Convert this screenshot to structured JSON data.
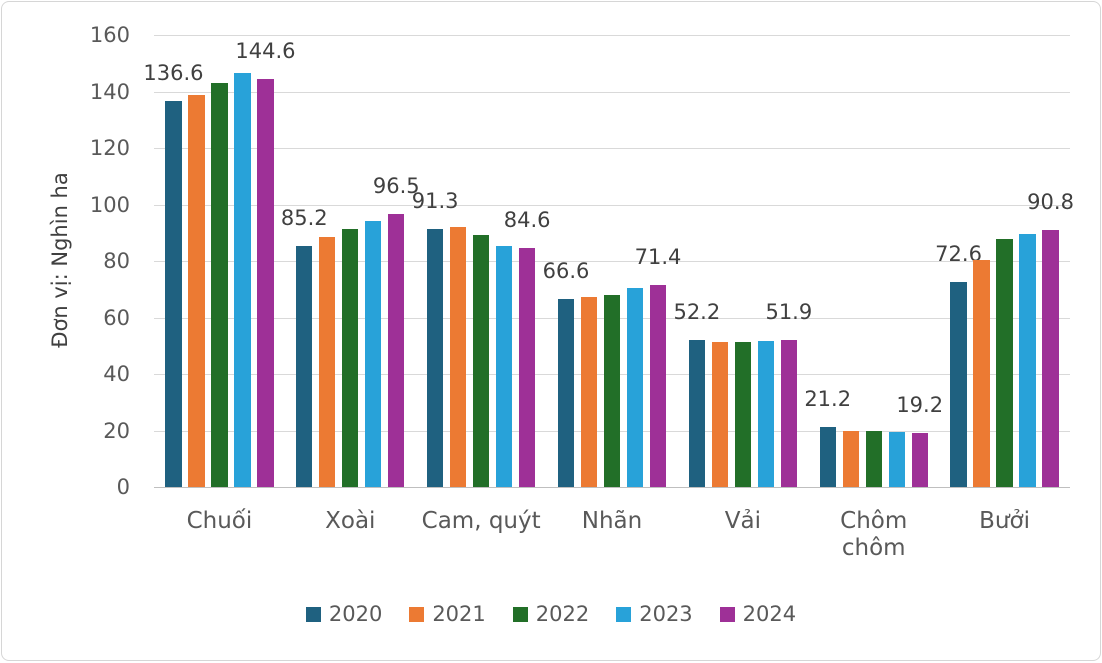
{
  "chart_data": {
    "type": "bar",
    "title": "",
    "xlabel": "",
    "ylabel": "Đơn vị: Nghìn ha",
    "ylim": [
      0,
      160
    ],
    "ytick_step": 20,
    "grid": true,
    "legend_position": "bottom",
    "categories": [
      "Chuối",
      "Xoài",
      "Cam, quýt",
      "Nhãn",
      "Vải",
      "Chôm chôm",
      "Bưởi"
    ],
    "x_tick_lines": [
      [
        "Chuối"
      ],
      [
        "Xoài"
      ],
      [
        "Cam, quýt"
      ],
      [
        "Nhãn"
      ],
      [
        "Vải"
      ],
      [
        "Chôm",
        "chôm"
      ],
      [
        "Bưởi"
      ]
    ],
    "series": [
      {
        "name": "2020",
        "color": "#1F6180",
        "values": [
          136.6,
          85.2,
          91.3,
          66.6,
          52.2,
          21.2,
          72.6
        ]
      },
      {
        "name": "2021",
        "color": "#EC7A33",
        "values": [
          138.7,
          88.4,
          92.2,
          67.2,
          51.2,
          20.0,
          80.5
        ]
      },
      {
        "name": "2022",
        "color": "#226F28",
        "values": [
          142.9,
          91.3,
          89.2,
          68.1,
          51.2,
          20.0,
          87.8
        ]
      },
      {
        "name": "2023",
        "color": "#28A2D9",
        "values": [
          146.6,
          94.2,
          85.4,
          70.5,
          51.8,
          19.4,
          89.7
        ]
      },
      {
        "name": "2024",
        "color": "#9E3097",
        "values": [
          144.6,
          96.5,
          84.6,
          71.4,
          51.9,
          19.2,
          90.8
        ]
      }
    ],
    "data_labels": {
      "shown_for_series": [
        "2020",
        "2024"
      ],
      "values": [
        [
          "136.6",
          "144.6"
        ],
        [
          "85.2",
          "96.5"
        ],
        [
          "91.3",
          "84.6"
        ],
        [
          "66.6",
          "71.4"
        ],
        [
          "52.2",
          "51.9"
        ],
        [
          "21.2",
          "19.2"
        ],
        [
          "72.6",
          "90.8"
        ]
      ]
    },
    "colors": {
      "axis_text": "#595959",
      "data_label_text": "#404040",
      "gridline": "#D9D9D9",
      "axis_line": "#BFBFBF"
    }
  }
}
